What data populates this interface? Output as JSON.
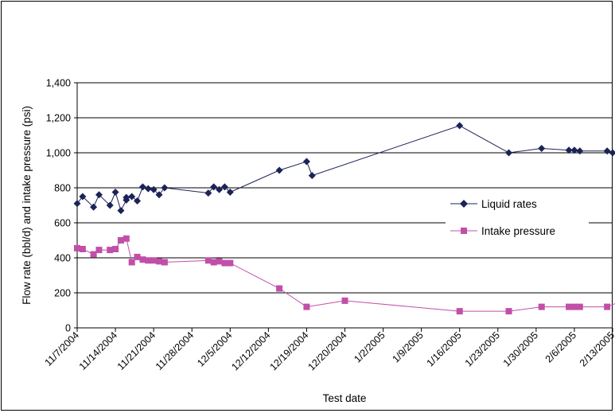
{
  "chart_data": {
    "type": "line",
    "xlabel": "Test date",
    "ylabel": "Flow rate (bbl/d) and intake pressure (psi)",
    "ylim": [
      0,
      1400
    ],
    "y_ticks": [
      "0",
      "200",
      "400",
      "600",
      "800",
      "1,000",
      "1,200",
      "1,400"
    ],
    "x_tick_labels": [
      "11/7/2004",
      "11/14/2004",
      "11/21/2004",
      "11/28/2004",
      "12/5/2004",
      "12/12/2004",
      "12/19/2004",
      "12/20/2004",
      "1/2/2005",
      "1/9/2005",
      "1/16/2005",
      "1/23/2005",
      "1/30/2005",
      "2/6/2005",
      "2/13/2005"
    ],
    "x_axis": "date",
    "grid": "horizontal",
    "legend_position": "center-right",
    "series": [
      {
        "name": "Liquid rates",
        "color": "#1c2356",
        "marker": "diamond",
        "points": [
          {
            "x": "11/7/2004",
            "y": 710
          },
          {
            "x": "11/8/2004",
            "y": 750
          },
          {
            "x": "11/10/2004",
            "y": 690
          },
          {
            "x": "11/11/2004",
            "y": 760
          },
          {
            "x": "11/13/2004",
            "y": 700
          },
          {
            "x": "11/14/2004",
            "y": 775
          },
          {
            "x": "11/15/2004",
            "y": 670
          },
          {
            "x": "11/16/2004",
            "y": 730
          },
          {
            "x": "11/16/2004",
            "y": 745
          },
          {
            "x": "11/17/2004",
            "y": 750
          },
          {
            "x": "11/18/2004",
            "y": 725
          },
          {
            "x": "11/19/2004",
            "y": 805
          },
          {
            "x": "11/20/2004",
            "y": 795
          },
          {
            "x": "11/21/2004",
            "y": 790
          },
          {
            "x": "11/22/2004",
            "y": 760
          },
          {
            "x": "11/23/2004",
            "y": 800
          },
          {
            "x": "12/1/2004",
            "y": 770
          },
          {
            "x": "12/2/2004",
            "y": 805
          },
          {
            "x": "12/3/2004",
            "y": 790
          },
          {
            "x": "12/4/2004",
            "y": 805
          },
          {
            "x": "12/5/2004",
            "y": 775
          },
          {
            "x": "12/14/2004",
            "y": 900
          },
          {
            "x": "12/19/2004",
            "y": 950
          },
          {
            "x": "12/20/2004",
            "y": 870
          },
          {
            "x": "1/16/2005",
            "y": 1155
          },
          {
            "x": "1/25/2005",
            "y": 1000
          },
          {
            "x": "1/31/2005",
            "y": 1025
          },
          {
            "x": "2/5/2005",
            "y": 1015
          },
          {
            "x": "2/6/2005",
            "y": 1015
          },
          {
            "x": "2/7/2005",
            "y": 1010
          },
          {
            "x": "2/12/2005",
            "y": 1010
          },
          {
            "x": "2/13/2005",
            "y": 1000
          }
        ]
      },
      {
        "name": "Intake pressure",
        "color": "#c14fa8",
        "marker": "square",
        "points": [
          {
            "x": "11/7/2004",
            "y": 455
          },
          {
            "x": "11/8/2004",
            "y": 450
          },
          {
            "x": "11/10/2004",
            "y": 420
          },
          {
            "x": "11/11/2004",
            "y": 445
          },
          {
            "x": "11/13/2004",
            "y": 445
          },
          {
            "x": "11/14/2004",
            "y": 450
          },
          {
            "x": "11/15/2004",
            "y": 500
          },
          {
            "x": "11/16/2004",
            "y": 510
          },
          {
            "x": "11/17/2004",
            "y": 375
          },
          {
            "x": "11/18/2004",
            "y": 405
          },
          {
            "x": "11/19/2004",
            "y": 390
          },
          {
            "x": "11/20/2004",
            "y": 385
          },
          {
            "x": "11/21/2004",
            "y": 385
          },
          {
            "x": "11/22/2004",
            "y": 380
          },
          {
            "x": "11/23/2004",
            "y": 375
          },
          {
            "x": "12/1/2004",
            "y": 385
          },
          {
            "x": "12/2/2004",
            "y": 375
          },
          {
            "x": "12/3/2004",
            "y": 380
          },
          {
            "x": "12/4/2004",
            "y": 370
          },
          {
            "x": "12/5/2004",
            "y": 370
          },
          {
            "x": "12/14/2004",
            "y": 225
          },
          {
            "x": "12/19/2004",
            "y": 120
          },
          {
            "x": "12/26/2004",
            "y": 155
          },
          {
            "x": "1/16/2005",
            "y": 95
          },
          {
            "x": "1/25/2005",
            "y": 95
          },
          {
            "x": "1/31/2005",
            "y": 120
          },
          {
            "x": "2/5/2005",
            "y": 120
          },
          {
            "x": "2/6/2005",
            "y": 120
          },
          {
            "x": "2/7/2005",
            "y": 120
          },
          {
            "x": "2/12/2005",
            "y": 120
          },
          {
            "x": "2/16/2005",
            "y": 170
          }
        ]
      }
    ]
  }
}
